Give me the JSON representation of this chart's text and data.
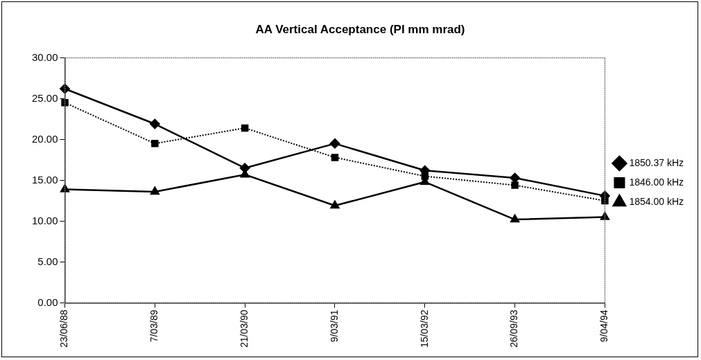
{
  "chart_data": {
    "type": "line",
    "title": "AA Vertical Acceptance (PI mm mrad)",
    "categories": [
      "23/06/88",
      "7/03/89",
      "21/03/90",
      "9/03/91",
      "15/03/92",
      "26/09/93",
      "9/04/94"
    ],
    "series": [
      {
        "name": "1850.37 kHz",
        "color": "#000000",
        "marker": "diamond",
        "line_style": "solid",
        "values": [
          26.2,
          21.9,
          16.5,
          19.5,
          16.2,
          15.3,
          13.1
        ]
      },
      {
        "name": "1846.00 kHz",
        "color": "#000000",
        "marker": "square",
        "line_style": "dotted",
        "values": [
          24.5,
          19.5,
          21.4,
          17.8,
          15.5,
          14.4,
          12.5
        ]
      },
      {
        "name": "1854.00 kHz",
        "color": "#000000",
        "marker": "triangle",
        "line_style": "solid",
        "values": [
          13.9,
          13.6,
          15.7,
          11.9,
          14.8,
          10.2,
          10.5
        ]
      }
    ],
    "ylim": [
      0,
      30
    ],
    "yticks": [
      {
        "value": 0,
        "label": "0.00"
      },
      {
        "value": 5,
        "label": "5.00"
      },
      {
        "value": 10,
        "label": "10.00"
      },
      {
        "value": 15,
        "label": "15.00"
      },
      {
        "value": 20,
        "label": "20.00"
      },
      {
        "value": 25,
        "label": "25.00"
      },
      {
        "value": 30,
        "label": "30.00"
      }
    ],
    "grid": false,
    "legend": "right"
  }
}
